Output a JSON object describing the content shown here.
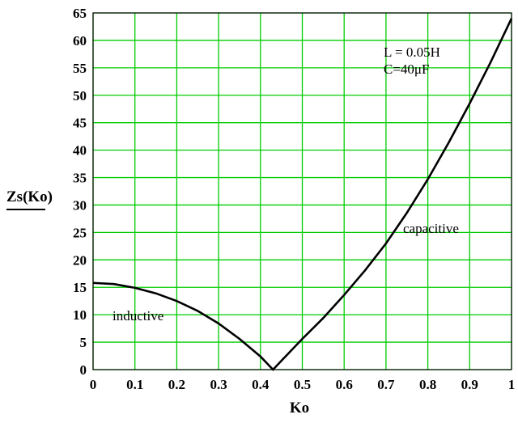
{
  "chart_data": {
    "type": "line",
    "title": "",
    "xlabel": "Ko",
    "ylabel": "Zs(Ko)",
    "xlim": [
      0,
      1
    ],
    "ylim": [
      0,
      65
    ],
    "grid": true,
    "grid_color": "#00cc00",
    "line_color": "#000000",
    "x_ticks": [
      "0",
      "0.1",
      "0.2",
      "0.3",
      "0.4",
      "0.5",
      "0.6",
      "0.7",
      "0.8",
      "0.9",
      "1"
    ],
    "y_ticks": [
      "0",
      "5",
      "10",
      "15",
      "20",
      "25",
      "30",
      "35",
      "40",
      "45",
      "50",
      "55",
      "60",
      "65"
    ],
    "series": [
      {
        "x": [
          0,
          0.05,
          0.1,
          0.15,
          0.2,
          0.25,
          0.3,
          0.35,
          0.4,
          0.43,
          0.45,
          0.5,
          0.55,
          0.6,
          0.65,
          0.7,
          0.75,
          0.8,
          0.85,
          0.9,
          0.95,
          1.0
        ],
        "values": [
          15.8,
          15.6,
          14.9,
          13.9,
          12.5,
          10.7,
          8.4,
          5.6,
          2.4,
          0,
          1.6,
          5.6,
          9.4,
          13.6,
          18.1,
          23.0,
          28.6,
          34.7,
          41.4,
          48.5,
          56.0,
          64.0
        ]
      }
    ],
    "annotations": {
      "params_line1": "L = 0.05H",
      "params_line2": "C=40μF",
      "inductive": "inductive",
      "capacitive": "capacitive"
    }
  }
}
